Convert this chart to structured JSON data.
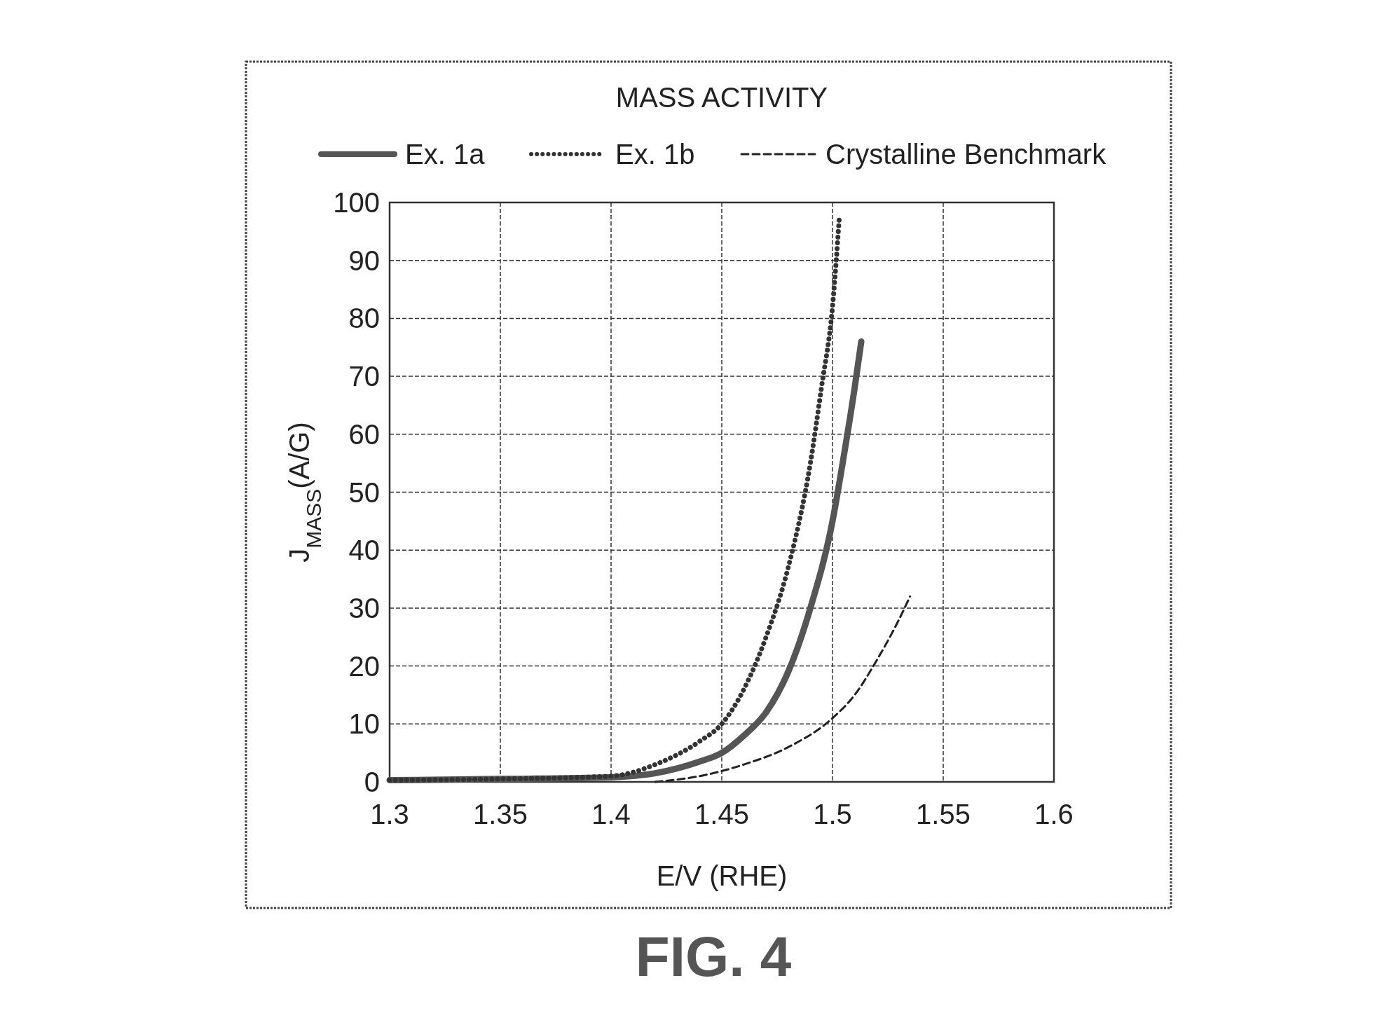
{
  "chart_data": {
    "type": "line",
    "title": "MASS ACTIVITY",
    "xlabel": "E/V (RHE)",
    "ylabel": "J$_{MASS}$(A/G)",
    "annotations": [
      "FIG. 4"
    ],
    "xlim": [
      1.3,
      1.6
    ],
    "xticks": [
      1.3,
      1.35,
      1.4,
      1.45,
      1.5,
      1.55,
      1.6
    ],
    "ylim": [
      0,
      100
    ],
    "yticks": [
      0,
      10,
      20,
      30,
      40,
      50,
      60,
      70,
      80,
      90,
      100
    ],
    "grid": true,
    "legend": "top",
    "series": [
      {
        "name": "Ex. 1a",
        "color": "#555555",
        "line_style": "solid",
        "x": [
          1.3,
          1.35,
          1.4,
          1.42,
          1.44,
          1.45,
          1.46,
          1.47,
          1.48,
          1.49,
          1.5,
          1.505,
          1.51,
          1.513
        ],
        "values": [
          0.3,
          0.5,
          0.8,
          1.5,
          3.5,
          5,
          8,
          12,
          19,
          30,
          45,
          56,
          68,
          76
        ]
      },
      {
        "name": "Ex. 1b",
        "color": "#333333",
        "line_style": "dotted",
        "x": [
          1.3,
          1.35,
          1.4,
          1.42,
          1.44,
          1.45,
          1.46,
          1.47,
          1.48,
          1.49,
          1.495,
          1.5,
          1.503
        ],
        "values": [
          0.3,
          0.5,
          1,
          3,
          7,
          10,
          16,
          25,
          37,
          55,
          68,
          82,
          97
        ]
      },
      {
        "name": "Crystalline Benchmark",
        "color": "#222222",
        "line_style": "dashed",
        "x": [
          1.42,
          1.44,
          1.46,
          1.48,
          1.5,
          1.51,
          1.52,
          1.53,
          1.535
        ],
        "values": [
          0,
          1,
          3,
          6,
          11,
          15,
          21,
          28,
          32
        ]
      }
    ]
  }
}
